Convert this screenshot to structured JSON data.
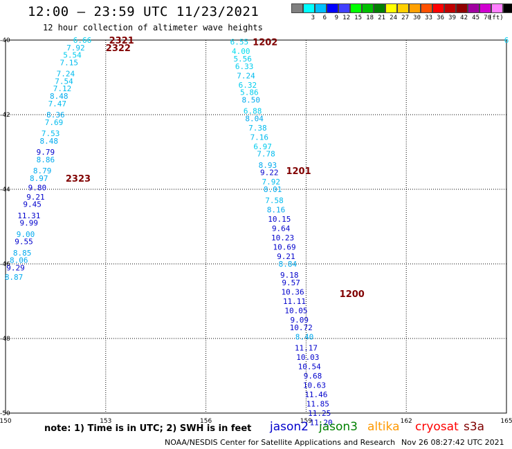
{
  "header": {
    "title": "12:00 — 23:59 UTC 11/23/2021",
    "subtitle": "12 hour collection of altimeter wave heights"
  },
  "legend": {
    "colors": [
      "#808080",
      "#00ffff",
      "#00bfff",
      "#0000ff",
      "#4040ff",
      "#00ff00",
      "#00c000",
      "#008000",
      "#ffff00",
      "#ffd000",
      "#ffa000",
      "#ff5000",
      "#ff0000",
      "#c00000",
      "#900000",
      "#a000a0",
      "#d000d0",
      "#ff80ff",
      "#000000"
    ],
    "labels": [
      "3",
      "6",
      "9",
      "12",
      "15",
      "18",
      "21",
      "24",
      "27",
      "30",
      "33",
      "36",
      "39",
      "42",
      "45",
      "70"
    ],
    "unit": "(ft)"
  },
  "axes": {
    "x_ticks": [
      "150",
      "153",
      "156",
      "159",
      "162",
      "165"
    ],
    "y_ticks": [
      "-40",
      "-42",
      "-44",
      "-46",
      "-48",
      "-50"
    ]
  },
  "chart_data": {
    "type": "scatter",
    "xlim": [
      150,
      165
    ],
    "ylim": [
      -50,
      -40
    ],
    "grid": true,
    "track_labels": [
      {
        "text": "2321",
        "lon": 153.1,
        "lat": -40.0
      },
      {
        "text": "2322",
        "lon": 153.0,
        "lat": -40.2
      },
      {
        "text": "2323",
        "lon": 151.8,
        "lat": -43.7
      },
      {
        "text": "1202",
        "lon": 157.4,
        "lat": -40.05
      },
      {
        "text": "1201",
        "lon": 158.4,
        "lat": -43.5
      },
      {
        "text": "1200",
        "lon": 160.0,
        "lat": -46.8
      }
    ],
    "points": [
      {
        "lon": 152.3,
        "lat": -40.0,
        "v": "6.66",
        "c": "#00ccee"
      },
      {
        "lon": 152.1,
        "lat": -40.2,
        "v": "7.92",
        "c": "#00bbee"
      },
      {
        "lon": 152.0,
        "lat": -40.4,
        "v": "5.54",
        "c": "#00ccee"
      },
      {
        "lon": 151.9,
        "lat": -40.6,
        "v": "7.15",
        "c": "#00bbee"
      },
      {
        "lon": 151.8,
        "lat": -40.9,
        "v": "7.24",
        "c": "#00bbee"
      },
      {
        "lon": 151.75,
        "lat": -41.1,
        "v": "7.54",
        "c": "#00bbee"
      },
      {
        "lon": 151.7,
        "lat": -41.3,
        "v": "7.12",
        "c": "#00bbee"
      },
      {
        "lon": 151.6,
        "lat": -41.5,
        "v": "8.48",
        "c": "#00aaee"
      },
      {
        "lon": 151.55,
        "lat": -41.7,
        "v": "7.47",
        "c": "#00bbee"
      },
      {
        "lon": 151.5,
        "lat": -42.0,
        "v": "8.36",
        "c": "#00aaee"
      },
      {
        "lon": 151.45,
        "lat": -42.2,
        "v": "7.69",
        "c": "#00bbee"
      },
      {
        "lon": 151.35,
        "lat": -42.5,
        "v": "7.53",
        "c": "#00bbee"
      },
      {
        "lon": 151.3,
        "lat": -42.7,
        "v": "8.48",
        "c": "#00aaee"
      },
      {
        "lon": 151.2,
        "lat": -43.0,
        "v": "9.79",
        "c": "#0000cc"
      },
      {
        "lon": 151.2,
        "lat": -43.2,
        "v": "8.86",
        "c": "#00aaee"
      },
      {
        "lon": 151.1,
        "lat": -43.5,
        "v": "8.79",
        "c": "#00aaee"
      },
      {
        "lon": 151.0,
        "lat": -43.7,
        "v": "8.97",
        "c": "#00aaee"
      },
      {
        "lon": 150.95,
        "lat": -43.95,
        "v": "9.80",
        "c": "#0000cc"
      },
      {
        "lon": 150.9,
        "lat": -44.2,
        "v": "9.21",
        "c": "#0000cc"
      },
      {
        "lon": 150.8,
        "lat": -44.4,
        "v": "9.45",
        "c": "#0000cc"
      },
      {
        "lon": 150.7,
        "lat": -44.7,
        "v": "11.31",
        "c": "#0000cc"
      },
      {
        "lon": 150.7,
        "lat": -44.9,
        "v": "9.99",
        "c": "#0000cc"
      },
      {
        "lon": 150.6,
        "lat": -45.2,
        "v": "9.00",
        "c": "#00aaee"
      },
      {
        "lon": 150.55,
        "lat": -45.4,
        "v": "9.55",
        "c": "#0000cc"
      },
      {
        "lon": 150.5,
        "lat": -45.7,
        "v": "8.85",
        "c": "#00aaee"
      },
      {
        "lon": 150.4,
        "lat": -45.9,
        "v": "8.06",
        "c": "#00aaee"
      },
      {
        "lon": 150.3,
        "lat": -46.1,
        "v": "9.29",
        "c": "#0000cc"
      },
      {
        "lon": 150.25,
        "lat": -46.35,
        "v": "8.87",
        "c": "#00aaee"
      },
      {
        "lon": 157.0,
        "lat": -40.05,
        "v": "6.55",
        "c": "#00ccee"
      },
      {
        "lon": 157.05,
        "lat": -40.3,
        "v": "4.00",
        "c": "#00ddee"
      },
      {
        "lon": 157.1,
        "lat": -40.5,
        "v": "5.56",
        "c": "#00ccee"
      },
      {
        "lon": 157.15,
        "lat": -40.7,
        "v": "6.33",
        "c": "#00ccee"
      },
      {
        "lon": 157.2,
        "lat": -40.95,
        "v": "7.24",
        "c": "#00bbee"
      },
      {
        "lon": 157.25,
        "lat": -41.2,
        "v": "6.32",
        "c": "#00ccee"
      },
      {
        "lon": 157.3,
        "lat": -41.4,
        "v": "5.86",
        "c": "#00ccee"
      },
      {
        "lon": 157.35,
        "lat": -41.6,
        "v": "8.50",
        "c": "#00aaee"
      },
      {
        "lon": 157.4,
        "lat": -41.9,
        "v": "6.88",
        "c": "#00ccee"
      },
      {
        "lon": 157.45,
        "lat": -42.1,
        "v": "8.04",
        "c": "#00aaee"
      },
      {
        "lon": 157.55,
        "lat": -42.35,
        "v": "7.38",
        "c": "#00bbee"
      },
      {
        "lon": 157.6,
        "lat": -42.6,
        "v": "7.16",
        "c": "#00bbee"
      },
      {
        "lon": 157.7,
        "lat": -42.85,
        "v": "6.97",
        "c": "#00ccee"
      },
      {
        "lon": 157.8,
        "lat": -43.05,
        "v": "7.78",
        "c": "#00bbee"
      },
      {
        "lon": 157.85,
        "lat": -43.35,
        "v": "8.93",
        "c": "#00aaee"
      },
      {
        "lon": 157.9,
        "lat": -43.55,
        "v": "9.22",
        "c": "#0000cc"
      },
      {
        "lon": 157.95,
        "lat": -43.8,
        "v": "7.92",
        "c": "#00bbee"
      },
      {
        "lon": 158.0,
        "lat": -44.0,
        "v": "8.01",
        "c": "#00aaee"
      },
      {
        "lon": 158.05,
        "lat": -44.3,
        "v": "7.58",
        "c": "#00bbee"
      },
      {
        "lon": 158.1,
        "lat": -44.55,
        "v": "8.16",
        "c": "#00aaee"
      },
      {
        "lon": 158.2,
        "lat": -44.8,
        "v": "10.15",
        "c": "#0000cc"
      },
      {
        "lon": 158.25,
        "lat": -45.05,
        "v": "9.64",
        "c": "#0000cc"
      },
      {
        "lon": 158.3,
        "lat": -45.3,
        "v": "10.23",
        "c": "#0000cc"
      },
      {
        "lon": 158.35,
        "lat": -45.55,
        "v": "10.69",
        "c": "#0000cc"
      },
      {
        "lon": 158.4,
        "lat": -45.8,
        "v": "9.21",
        "c": "#0000cc"
      },
      {
        "lon": 158.45,
        "lat": -46.0,
        "v": "8.84",
        "c": "#00aaee"
      },
      {
        "lon": 158.5,
        "lat": -46.3,
        "v": "9.18",
        "c": "#0000cc"
      },
      {
        "lon": 158.55,
        "lat": -46.5,
        "v": "9.57",
        "c": "#0000cc"
      },
      {
        "lon": 158.6,
        "lat": -46.75,
        "v": "10.36",
        "c": "#0000cc"
      },
      {
        "lon": 158.65,
        "lat": -47.0,
        "v": "11.11",
        "c": "#0000cc"
      },
      {
        "lon": 158.7,
        "lat": -47.25,
        "v": "10.05",
        "c": "#0000cc"
      },
      {
        "lon": 158.8,
        "lat": -47.5,
        "v": "9.09",
        "c": "#0000cc"
      },
      {
        "lon": 158.85,
        "lat": -47.7,
        "v": "10.72",
        "c": "#0000cc"
      },
      {
        "lon": 158.95,
        "lat": -47.95,
        "v": "8.40",
        "c": "#00aaee"
      },
      {
        "lon": 159.0,
        "lat": -48.25,
        "v": "11.17",
        "c": "#0000cc"
      },
      {
        "lon": 159.05,
        "lat": -48.5,
        "v": "10.03",
        "c": "#0000cc"
      },
      {
        "lon": 159.1,
        "lat": -48.75,
        "v": "10.54",
        "c": "#0000cc"
      },
      {
        "lon": 159.2,
        "lat": -49.0,
        "v": "9.68",
        "c": "#0000cc"
      },
      {
        "lon": 159.25,
        "lat": -49.25,
        "v": "10.63",
        "c": "#0000cc"
      },
      {
        "lon": 159.3,
        "lat": -49.5,
        "v": "11.46",
        "c": "#0000cc"
      },
      {
        "lon": 159.35,
        "lat": -49.75,
        "v": "11.85",
        "c": "#0000cc"
      },
      {
        "lon": 159.4,
        "lat": -50.0,
        "v": "11.25",
        "c": "#0000cc"
      },
      {
        "lon": 159.45,
        "lat": -50.25,
        "v": "11.20",
        "c": "#0000cc"
      },
      {
        "lon": 165.0,
        "lat": -40.0,
        "v": "6",
        "c": "#00ccee"
      }
    ]
  },
  "notes": {
    "note": "note: 1) Time is in UTC; 2) SWH is in feet",
    "satellites": [
      {
        "name": "jason2",
        "color": "#0000cc"
      },
      {
        "name": "jason3",
        "color": "#008000"
      },
      {
        "name": "altika",
        "color": "#ff9900"
      },
      {
        "name": "cryosat",
        "color": "#ff0000"
      },
      {
        "name": "s3a",
        "color": "#800000"
      }
    ],
    "footer": "NOAA/NESDIS Center for Satellite Applications and Research",
    "generated": "Nov 26 08:27:42 UTC 2021"
  }
}
